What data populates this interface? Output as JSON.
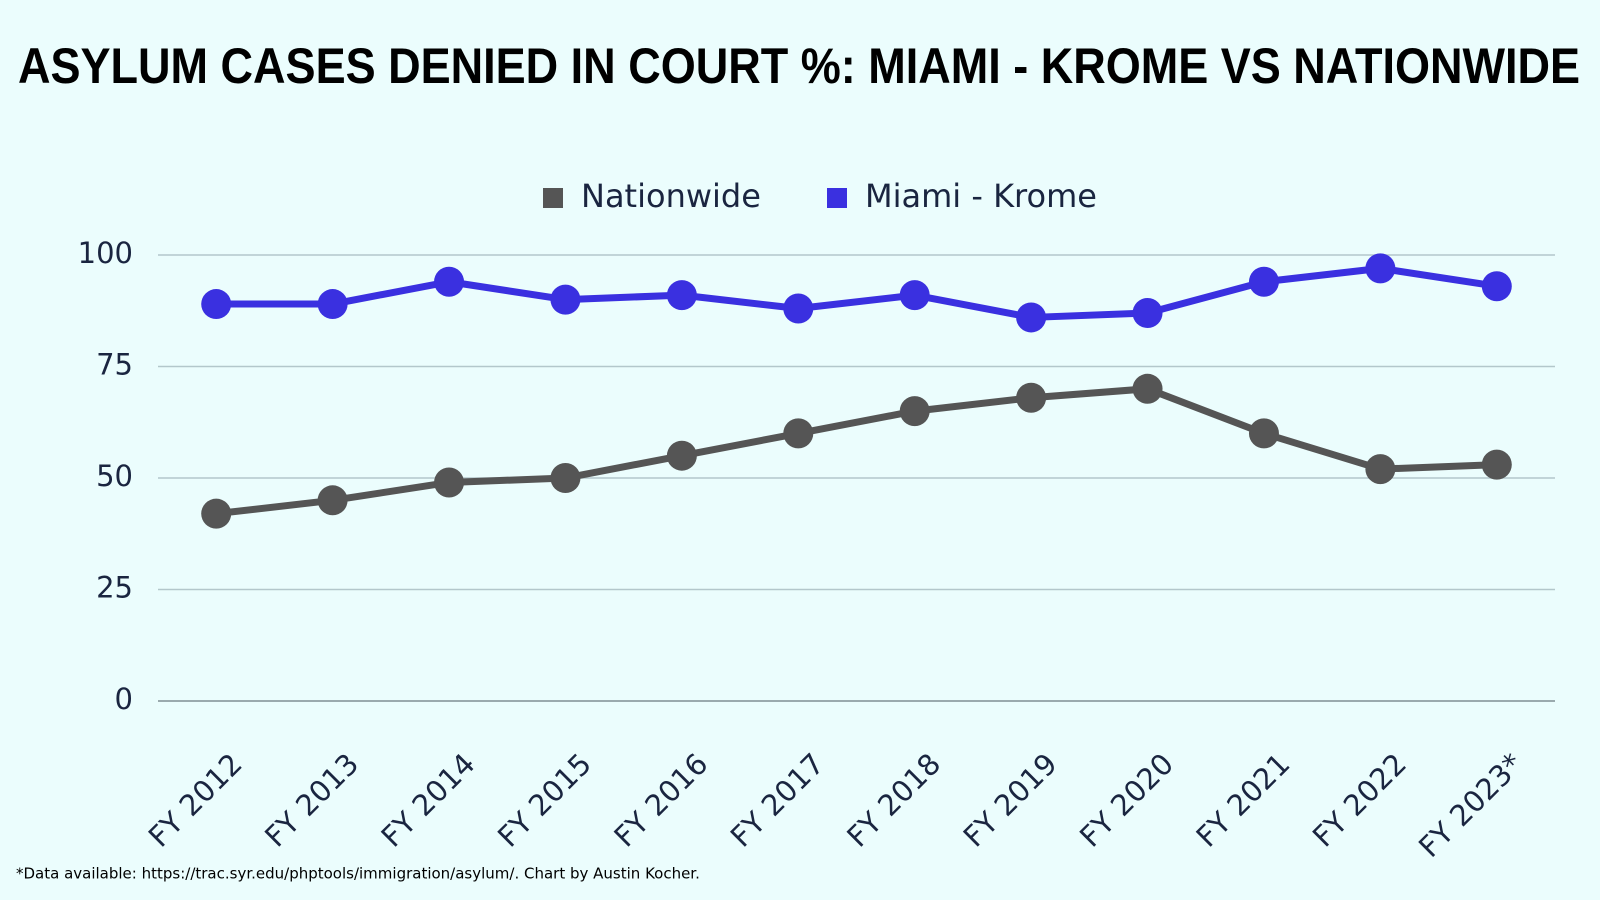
{
  "chart_data": {
    "type": "line",
    "title": "ASYLUM CASES DENIED IN COURT %: MIAMI - KROME VS NATIONWIDE",
    "footnote": "*Data available: https://trac.syr.edu/phptools/immigration/asylum/. Chart by Austin Kocher.",
    "categories": [
      "FY 2012",
      "FY 2013",
      "FY 2014",
      "FY 2015",
      "FY 2016",
      "FY 2017",
      "FY 2018",
      "FY 2019",
      "FY 2020",
      "FY 2021",
      "FY 2022",
      "FY 2023*"
    ],
    "series": [
      {
        "name": "Nationwide",
        "color": "#555555",
        "values": [
          42,
          45,
          49,
          50,
          55,
          60,
          65,
          68,
          70,
          60,
          52,
          53
        ]
      },
      {
        "name": "Miami - Krome",
        "color": "#3a30e0",
        "values": [
          89,
          89,
          94,
          90,
          91,
          88,
          91,
          86,
          87,
          94,
          97,
          93
        ]
      }
    ],
    "ylim": [
      0,
      100
    ],
    "yticks": [
      0,
      25,
      50,
      75,
      100
    ],
    "grid": true
  }
}
